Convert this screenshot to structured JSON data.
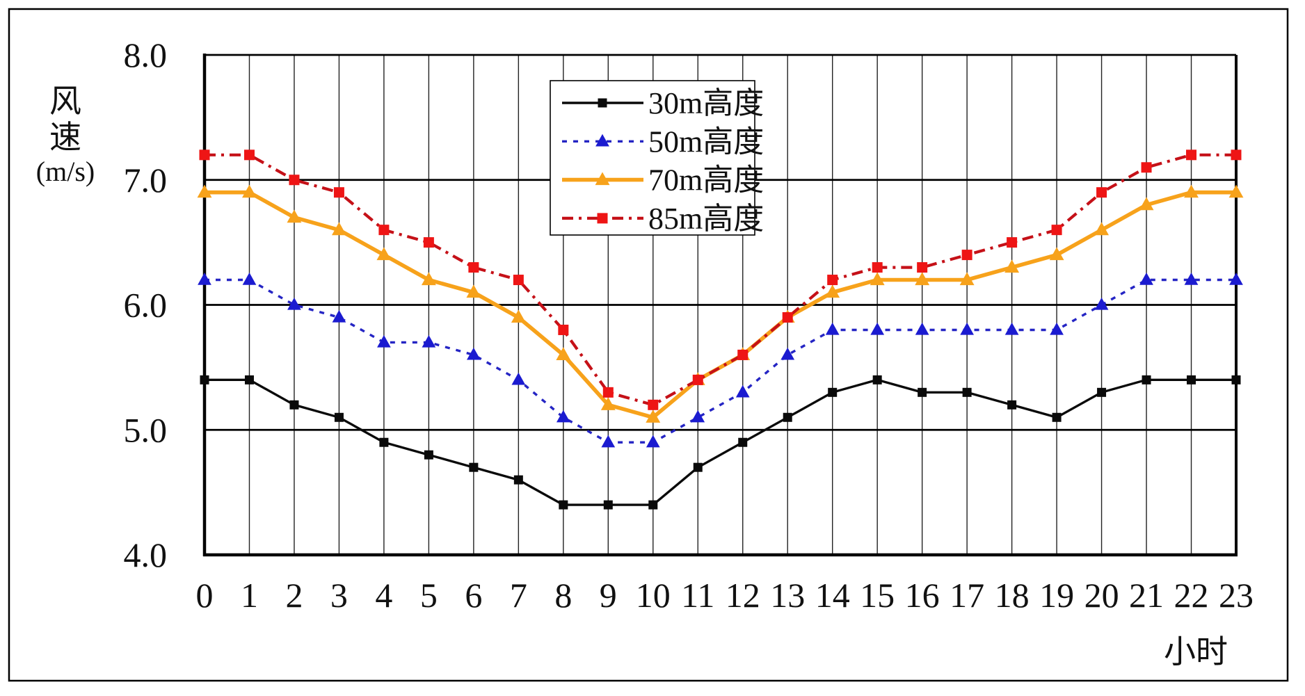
{
  "axis": {
    "y_title_lines": [
      "风",
      "速",
      "(m/s)"
    ],
    "x_title": "小时",
    "y_ticks": [
      "8.0",
      "7.0",
      "6.0",
      "5.0",
      "4.0"
    ],
    "x_ticks": [
      "0",
      "1",
      "2",
      "3",
      "4",
      "5",
      "6",
      "7",
      "8",
      "9",
      "10",
      "11",
      "12",
      "13",
      "14",
      "15",
      "16",
      "17",
      "18",
      "19",
      "20",
      "21",
      "22",
      "23"
    ]
  },
  "colors": {
    "series_30m": "#0a0a0a",
    "series_50m": "#1b1bd0",
    "series_70m": "#f7a21b",
    "series_85m_marker": "#ee1515",
    "series_85m_line": "#c51118",
    "grid": "#000000",
    "background": "#ffffff"
  },
  "chart_data": {
    "type": "line",
    "title": "",
    "xlabel": "小时",
    "ylabel": "风速(m/s)",
    "x": [
      0,
      1,
      2,
      3,
      4,
      5,
      6,
      7,
      8,
      9,
      10,
      11,
      12,
      13,
      14,
      15,
      16,
      17,
      18,
      19,
      20,
      21,
      22,
      23
    ],
    "xlim": [
      0,
      23
    ],
    "ylim": [
      4.0,
      8.0
    ],
    "y_gridlines": [
      5.0,
      6.0,
      7.0
    ],
    "grid": true,
    "legend_position": "inside-top-center",
    "series": [
      {
        "name": "30m高度",
        "color": "#0a0a0a",
        "line_color": "#0a0a0a",
        "marker": "square",
        "line_style": "solid",
        "values": [
          5.4,
          5.4,
          5.2,
          5.1,
          4.9,
          4.8,
          4.7,
          4.6,
          4.4,
          4.4,
          4.4,
          4.7,
          4.9,
          5.1,
          5.3,
          5.4,
          5.3,
          5.3,
          5.2,
          5.1,
          5.3,
          5.4,
          5.4,
          5.4
        ]
      },
      {
        "name": "50m高度",
        "color": "#1b1bd0",
        "line_color": "#2525c4",
        "marker": "triangle",
        "line_style": "dashed",
        "values": [
          6.2,
          6.2,
          6.0,
          5.9,
          5.7,
          5.7,
          5.6,
          5.4,
          5.1,
          4.9,
          4.9,
          5.1,
          5.3,
          5.6,
          5.8,
          5.8,
          5.8,
          5.8,
          5.8,
          5.8,
          6.0,
          6.2,
          6.2,
          6.2
        ]
      },
      {
        "name": "70m高度",
        "color": "#f7a21b",
        "line_color": "#f7a21b",
        "marker": "triangle",
        "line_style": "solid-thick",
        "values": [
          6.9,
          6.9,
          6.7,
          6.6,
          6.4,
          6.2,
          6.1,
          5.9,
          5.6,
          5.2,
          5.1,
          5.4,
          5.6,
          5.9,
          6.1,
          6.2,
          6.2,
          6.2,
          6.3,
          6.4,
          6.6,
          6.8,
          6.9,
          6.9
        ]
      },
      {
        "name": "85m高度",
        "color": "#ee1515",
        "line_color": "#c51118",
        "marker": "square",
        "line_style": "dashdot",
        "values": [
          7.2,
          7.2,
          7.0,
          6.9,
          6.6,
          6.5,
          6.3,
          6.2,
          5.8,
          5.3,
          5.2,
          5.4,
          5.6,
          5.9,
          6.2,
          6.3,
          6.3,
          6.4,
          6.5,
          6.6,
          6.9,
          7.1,
          7.2,
          7.2
        ]
      }
    ]
  }
}
